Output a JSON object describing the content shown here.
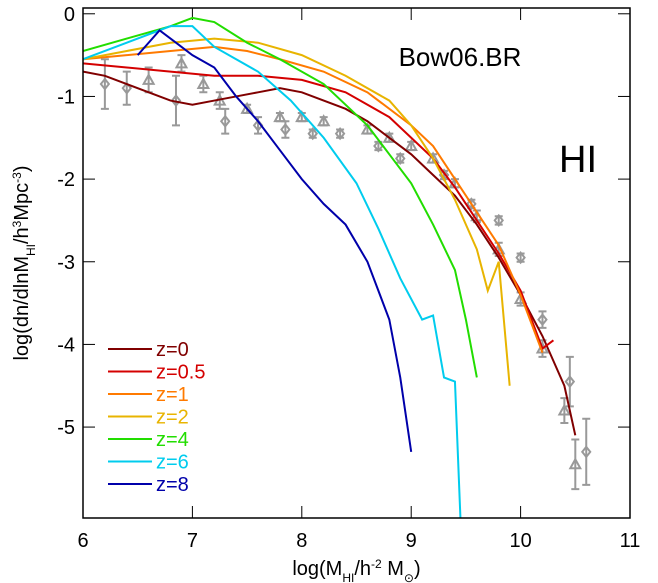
{
  "chart_data": {
    "type": "line",
    "xlabel": [
      {
        "text": "log(M"
      },
      {
        "text": "HI",
        "shift": "sub"
      },
      {
        "text": "/h"
      },
      {
        "text": "-2",
        "shift": "sup"
      },
      {
        "text": " M"
      },
      {
        "text": "⊙",
        "shift": "sub"
      },
      {
        "text": ")"
      }
    ],
    "ylabel": [
      {
        "text": "log(dn/dlnM"
      },
      {
        "text": "HI",
        "shift": "sub"
      },
      {
        "text": "/h"
      },
      {
        "text": "3",
        "shift": "sup"
      },
      {
        "text": "Mpc"
      },
      {
        "text": "-3",
        "shift": "sup"
      },
      {
        "text": ")"
      }
    ],
    "annotations": [
      "Bow06.BR",
      "HI"
    ],
    "xlim": [
      6,
      11
    ],
    "xticks": [
      6,
      7,
      8,
      9,
      10,
      11
    ],
    "ylim": [
      -6.1,
      0.07
    ],
    "yticks": [
      0,
      -1,
      -2,
      -3,
      -4,
      -5
    ],
    "series": [
      {
        "name": "z=0",
        "color": "#800000",
        "x": [
          6,
          6.2,
          6.4,
          6.6,
          6.8,
          7.0,
          7.2,
          7.4,
          7.6,
          7.8,
          8.0,
          8.2,
          8.4,
          8.6,
          8.8,
          9.0,
          9.2,
          9.4,
          9.6,
          9.8,
          10.0,
          10.2,
          10.4,
          10.5
        ],
        "values": [
          -0.7,
          -0.75,
          -0.85,
          -0.95,
          -1.05,
          -1.1,
          -1.05,
          -1.0,
          -0.95,
          -0.9,
          -0.95,
          -1.05,
          -1.15,
          -1.3,
          -1.5,
          -1.7,
          -1.95,
          -2.2,
          -2.55,
          -2.95,
          -3.4,
          -3.9,
          -4.5,
          -5.1
        ]
      },
      {
        "name": "z=0.5",
        "color": "#d40000",
        "x": [
          6,
          6.4,
          6.8,
          7.2,
          7.6,
          8.0,
          8.4,
          8.8,
          9.0,
          9.2,
          9.4,
          9.6,
          9.8,
          10.0,
          10.2,
          10.3
        ],
        "values": [
          -0.6,
          -0.65,
          -0.7,
          -0.75,
          -0.75,
          -0.8,
          -0.95,
          -1.25,
          -1.5,
          -1.75,
          -2.1,
          -2.5,
          -2.9,
          -3.35,
          -4.05,
          -3.95
        ]
      },
      {
        "name": "z=1",
        "color": "#ff7a00",
        "x": [
          6,
          6.4,
          6.8,
          7.2,
          7.5,
          7.8,
          8.2,
          8.6,
          9.0,
          9.2,
          9.4,
          9.6,
          9.8,
          9.9,
          10.0,
          10.1,
          10.2
        ],
        "values": [
          -0.55,
          -0.5,
          -0.45,
          -0.4,
          -0.45,
          -0.55,
          -0.7,
          -0.95,
          -1.35,
          -1.6,
          -2.0,
          -2.4,
          -2.8,
          -3.1,
          -3.4,
          -3.75,
          -4.1
        ]
      },
      {
        "name": "z=2",
        "color": "#e8b400",
        "x": [
          6,
          6.4,
          6.8,
          7.2,
          7.6,
          8.0,
          8.4,
          8.8,
          9.0,
          9.2,
          9.4,
          9.6,
          9.7,
          9.8,
          9.9
        ],
        "values": [
          -0.55,
          -0.45,
          -0.35,
          -0.3,
          -0.35,
          -0.5,
          -0.75,
          -1.05,
          -1.35,
          -1.75,
          -2.25,
          -2.85,
          -3.35,
          -3.0,
          -4.5
        ]
      },
      {
        "name": "z=4",
        "color": "#22dd00",
        "x": [
          6,
          6.4,
          6.8,
          7.0,
          7.2,
          7.5,
          7.8,
          8.2,
          8.6,
          8.8,
          9.0,
          9.2,
          9.4,
          9.5,
          9.6
        ],
        "values": [
          -0.45,
          -0.3,
          -0.15,
          -0.05,
          -0.1,
          -0.35,
          -0.55,
          -0.85,
          -1.35,
          -1.7,
          -2.05,
          -2.55,
          -3.1,
          -3.7,
          -4.4
        ]
      },
      {
        "name": "z=6",
        "color": "#00ccee",
        "x": [
          6,
          6.4,
          6.8,
          7.0,
          7.2,
          7.6,
          7.9,
          8.2,
          8.5,
          8.7,
          8.9,
          9.1,
          9.2,
          9.3,
          9.4,
          9.45
        ],
        "values": [
          -0.55,
          -0.35,
          -0.15,
          -0.15,
          -0.4,
          -0.7,
          -1.05,
          -1.5,
          -2.05,
          -2.6,
          -3.2,
          -3.7,
          -3.65,
          -4.4,
          -4.45,
          -6.1
        ]
      },
      {
        "name": "z=8",
        "color": "#0000aa",
        "x": [
          6.5,
          6.7,
          6.85,
          7.0,
          7.2,
          7.4,
          7.6,
          7.8,
          8.0,
          8.2,
          8.4,
          8.6,
          8.8,
          8.9,
          9.0
        ],
        "values": [
          -0.5,
          -0.2,
          -0.35,
          -0.5,
          -0.65,
          -1.0,
          -1.3,
          -1.65,
          -2.0,
          -2.3,
          -2.55,
          -3.0,
          -3.7,
          -4.4,
          -5.3
        ]
      }
    ],
    "observations": [
      {
        "marker": "triangle",
        "color": "#999999",
        "x": [
          6.6,
          6.9,
          7.1,
          7.25,
          7.5,
          7.8,
          8.0,
          8.2,
          8.6,
          8.8,
          9.0,
          9.2,
          9.4,
          9.6,
          9.8,
          10.0,
          10.2,
          10.4,
          10.5
        ],
        "values": [
          -0.8,
          -0.6,
          -0.85,
          -1.05,
          -1.15,
          -1.25,
          -1.25,
          -1.3,
          -1.4,
          -1.5,
          -1.6,
          -1.75,
          -2.05,
          -2.45,
          -2.85,
          -3.45,
          -4.05,
          -4.8,
          -5.45
        ],
        "errors": [
          0.15,
          0.1,
          0.1,
          0.1,
          0.05,
          0.05,
          0.05,
          0.05,
          0.05,
          0.05,
          0.05,
          0.05,
          0.05,
          0.07,
          0.08,
          0.08,
          0.1,
          0.15,
          0.3
        ]
      },
      {
        "marker": "diamond",
        "color": "#999999",
        "x": [
          6.2,
          6.4,
          6.85,
          7.3,
          7.6,
          7.85,
          8.1,
          8.35,
          8.7,
          8.9,
          9.3,
          9.55,
          9.8,
          10.0,
          10.2,
          10.45,
          10.6
        ],
        "values": [
          -0.85,
          -0.9,
          -1.05,
          -1.3,
          -1.35,
          -1.4,
          -1.45,
          -1.45,
          -1.6,
          -1.75,
          -1.95,
          -2.3,
          -2.5,
          -2.95,
          -3.7,
          -4.45,
          -5.3
        ],
        "errors": [
          0.3,
          0.2,
          0.3,
          0.15,
          0.1,
          0.1,
          0.05,
          0.05,
          0.05,
          0.05,
          0.05,
          0.05,
          0.05,
          0.05,
          0.1,
          0.3,
          0.4
        ]
      }
    ]
  }
}
